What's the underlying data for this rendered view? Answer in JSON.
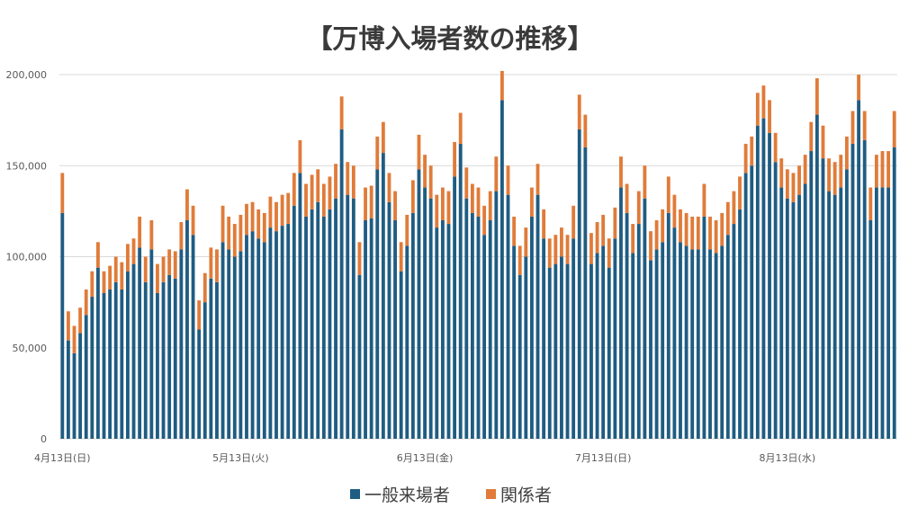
{
  "chart_data": {
    "type": "bar",
    "stacked": true,
    "title": "【万博入場者数の推移】",
    "ylim": [
      0,
      200000
    ],
    "yticks": [
      "0",
      "50,000",
      "100,000",
      "150,000",
      "200,000"
    ],
    "ytick_values": [
      0,
      50000,
      100000,
      150000,
      200000
    ],
    "grid": true,
    "legend_position": "bottom",
    "colors": {
      "general": "#1f5c82",
      "staff": "#e07b39"
    },
    "x_tick_labels": [
      {
        "index": 0,
        "label": "4月13日(日)"
      },
      {
        "index": 30,
        "label": "5月13日(火)"
      },
      {
        "index": 61,
        "label": "6月13日(金)"
      },
      {
        "index": 91,
        "label": "7月13日(日)"
      },
      {
        "index": 122,
        "label": "8月13日(水)"
      }
    ],
    "series": [
      {
        "name": "一般来場者",
        "values": [
          124000,
          54000,
          47000,
          58000,
          68000,
          78000,
          94000,
          80000,
          82000,
          86000,
          82000,
          92000,
          96000,
          105000,
          86000,
          104000,
          80000,
          86000,
          90000,
          88000,
          104000,
          120000,
          112000,
          60000,
          75000,
          88000,
          86000,
          108000,
          104000,
          100000,
          103000,
          112000,
          114000,
          110000,
          108000,
          116000,
          114000,
          117000,
          118000,
          128000,
          146000,
          122000,
          126000,
          130000,
          122000,
          126000,
          132000,
          170000,
          134000,
          132000,
          90000,
          120000,
          121000,
          148000,
          157000,
          130000,
          120000,
          92000,
          106000,
          124000,
          148000,
          138000,
          132000,
          116000,
          120000,
          118000,
          144000,
          162000,
          132000,
          124000,
          122000,
          112000,
          120000,
          136000,
          186000,
          134000,
          106000,
          90000,
          100000,
          122000,
          134000,
          110000,
          94000,
          96000,
          100000,
          96000,
          110000,
          170000,
          160000,
          96000,
          102000,
          106000,
          94000,
          110000,
          138000,
          124000,
          102000,
          118000,
          132000,
          98000,
          104000,
          108000,
          124000,
          116000,
          108000,
          106000,
          104000,
          104000,
          122000,
          104000,
          102000,
          106000,
          112000,
          118000,
          126000,
          146000,
          150000,
          172000,
          176000,
          168000,
          152000,
          138000,
          132000,
          130000,
          134000,
          140000,
          158000,
          178000,
          154000,
          136000,
          134000,
          138000,
          148000,
          162000,
          186000,
          164000,
          120000,
          138000,
          138000,
          138000,
          160000
        ]
      },
      {
        "name": "関係者",
        "values": [
          22000,
          16000,
          15000,
          14000,
          14000,
          14000,
          14000,
          12000,
          13000,
          14000,
          15000,
          15000,
          14000,
          17000,
          14000,
          16000,
          16000,
          14000,
          14000,
          15000,
          15000,
          17000,
          16000,
          16000,
          16000,
          17000,
          18000,
          20000,
          18000,
          18000,
          20000,
          17000,
          16000,
          16000,
          16000,
          17000,
          16000,
          17000,
          17000,
          18000,
          18000,
          18000,
          19000,
          18000,
          18000,
          18000,
          19000,
          18000,
          18000,
          18000,
          18000,
          18000,
          18000,
          18000,
          17000,
          16000,
          16000,
          16000,
          17000,
          18000,
          19000,
          18000,
          18000,
          18000,
          18000,
          18000,
          19000,
          17000,
          17000,
          16000,
          16000,
          16000,
          16000,
          19000,
          16000,
          16000,
          16000,
          16000,
          16000,
          16000,
          17000,
          16000,
          16000,
          16000,
          16000,
          16000,
          18000,
          19000,
          18000,
          17000,
          17000,
          17000,
          16000,
          17000,
          17000,
          16000,
          16000,
          18000,
          18000,
          16000,
          16000,
          18000,
          20000,
          18000,
          18000,
          18000,
          18000,
          18000,
          18000,
          18000,
          18000,
          18000,
          18000,
          18000,
          18000,
          16000,
          16000,
          18000,
          18000,
          18000,
          16000,
          16000,
          16000,
          16000,
          16000,
          16000,
          16000,
          20000,
          18000,
          18000,
          18000,
          18000,
          18000,
          18000,
          14000,
          16000,
          18000,
          18000,
          20000,
          20000,
          20000
        ]
      }
    ]
  }
}
